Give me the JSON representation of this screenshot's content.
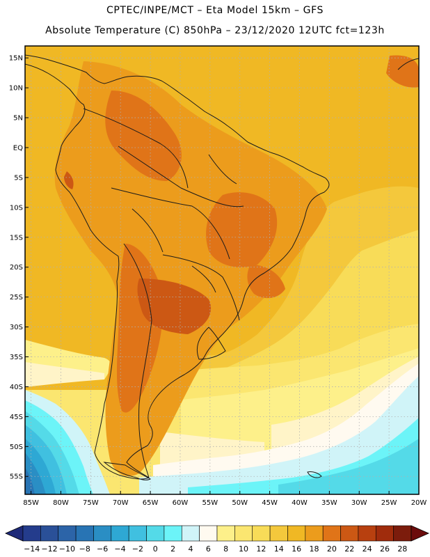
{
  "title_line1": "CPTEC/INPE/MCT –  Eta Model 15km – GFS",
  "title_line2": "Absolute Temperature (C) 850hPa – 23/12/2020 12UTC fct=123h",
  "map": {
    "lon_range": [
      -86,
      -20
    ],
    "lat_range": [
      -58,
      17
    ],
    "lat_ticks": [
      {
        "value": 15,
        "label": "15N"
      },
      {
        "value": 10,
        "label": "10N"
      },
      {
        "value": 5,
        "label": "5N"
      },
      {
        "value": 0,
        "label": "EQ"
      },
      {
        "value": -5,
        "label": "5S"
      },
      {
        "value": -10,
        "label": "10S"
      },
      {
        "value": -15,
        "label": "15S"
      },
      {
        "value": -20,
        "label": "20S"
      },
      {
        "value": -25,
        "label": "25S"
      },
      {
        "value": -30,
        "label": "30S"
      },
      {
        "value": -35,
        "label": "35S"
      },
      {
        "value": -40,
        "label": "40S"
      },
      {
        "value": -45,
        "label": "45S"
      },
      {
        "value": -50,
        "label": "50S"
      },
      {
        "value": -55,
        "label": "55S"
      }
    ],
    "lon_ticks": [
      {
        "value": -85,
        "label": "85W"
      },
      {
        "value": -80,
        "label": "80W"
      },
      {
        "value": -75,
        "label": "75W"
      },
      {
        "value": -70,
        "label": "70W"
      },
      {
        "value": -65,
        "label": "65W"
      },
      {
        "value": -60,
        "label": "60W"
      },
      {
        "value": -55,
        "label": "55W"
      },
      {
        "value": -50,
        "label": "50W"
      },
      {
        "value": -45,
        "label": "45W"
      },
      {
        "value": -40,
        "label": "40W"
      },
      {
        "value": -35,
        "label": "35W"
      },
      {
        "value": -30,
        "label": "30W"
      },
      {
        "value": -25,
        "label": "25W"
      },
      {
        "value": -20,
        "label": "20W"
      }
    ],
    "temperature_zones": [
      {
        "name": "background",
        "value": 18,
        "color": "#f0b824"
      },
      {
        "name": "east-atlantic-mild",
        "value": 16,
        "color": "#f4c83c"
      },
      {
        "name": "east-atlantic-cool",
        "value": 14,
        "color": "#f8dc58"
      },
      {
        "name": "southern-ring-12",
        "value": 12,
        "color": "#fbe670"
      },
      {
        "name": "southern-ring-10",
        "value": 10,
        "color": "#fdf08a"
      },
      {
        "name": "southern-ring-8",
        "value": 8,
        "color": "#fff4c8"
      },
      {
        "name": "southern-ring-6",
        "value": 6,
        "color": "#fffaf0"
      },
      {
        "name": "southern-ring-4",
        "value": 4,
        "color": "#d0f4f8"
      },
      {
        "name": "southern-ring-2",
        "value": 2,
        "color": "#6cf4f8"
      },
      {
        "name": "southern-ring-0",
        "value": 0,
        "color": "#54dae8"
      },
      {
        "name": "southern-ring-minus2",
        "value": -2,
        "color": "#40c0e0"
      },
      {
        "name": "southern-ring-minus4",
        "value": -4,
        "color": "#2ea8d4"
      },
      {
        "name": "southern-ring-minus6",
        "value": -6,
        "color": "#2a8ec4"
      },
      {
        "name": "southern-ring-minus8",
        "value": -8,
        "color": "#2874b4"
      },
      {
        "name": "land-20",
        "value": 20,
        "color": "#ec9c1c"
      },
      {
        "name": "land-22",
        "value": 22,
        "color": "#e07418"
      },
      {
        "name": "land-24",
        "value": 24,
        "color": "#cc5814"
      }
    ]
  },
  "colorbar": {
    "labels": [
      "-14",
      "-12",
      "-10",
      "-8",
      "-6",
      "-4",
      "-2",
      "0",
      "2",
      "4",
      "6",
      "8",
      "10",
      "12",
      "14",
      "16",
      "18",
      "20",
      "22",
      "24",
      "26",
      "28"
    ],
    "colors": [
      "#243c8c",
      "#2a5098",
      "#2c64a8",
      "#2874b4",
      "#2a8ec4",
      "#2ea8d4",
      "#40c0e0",
      "#54dae8",
      "#6cf4f8",
      "#d0f4f8",
      "#fffaf0",
      "#fdf08a",
      "#fbe670",
      "#f8dc58",
      "#f4c83c",
      "#f0b824",
      "#ec9c1c",
      "#e07418",
      "#cc5814",
      "#b8400f",
      "#a02c0c",
      "#7c1c0c"
    ],
    "under_color": "#1e2a78",
    "over_color": "#6c0c0c"
  }
}
